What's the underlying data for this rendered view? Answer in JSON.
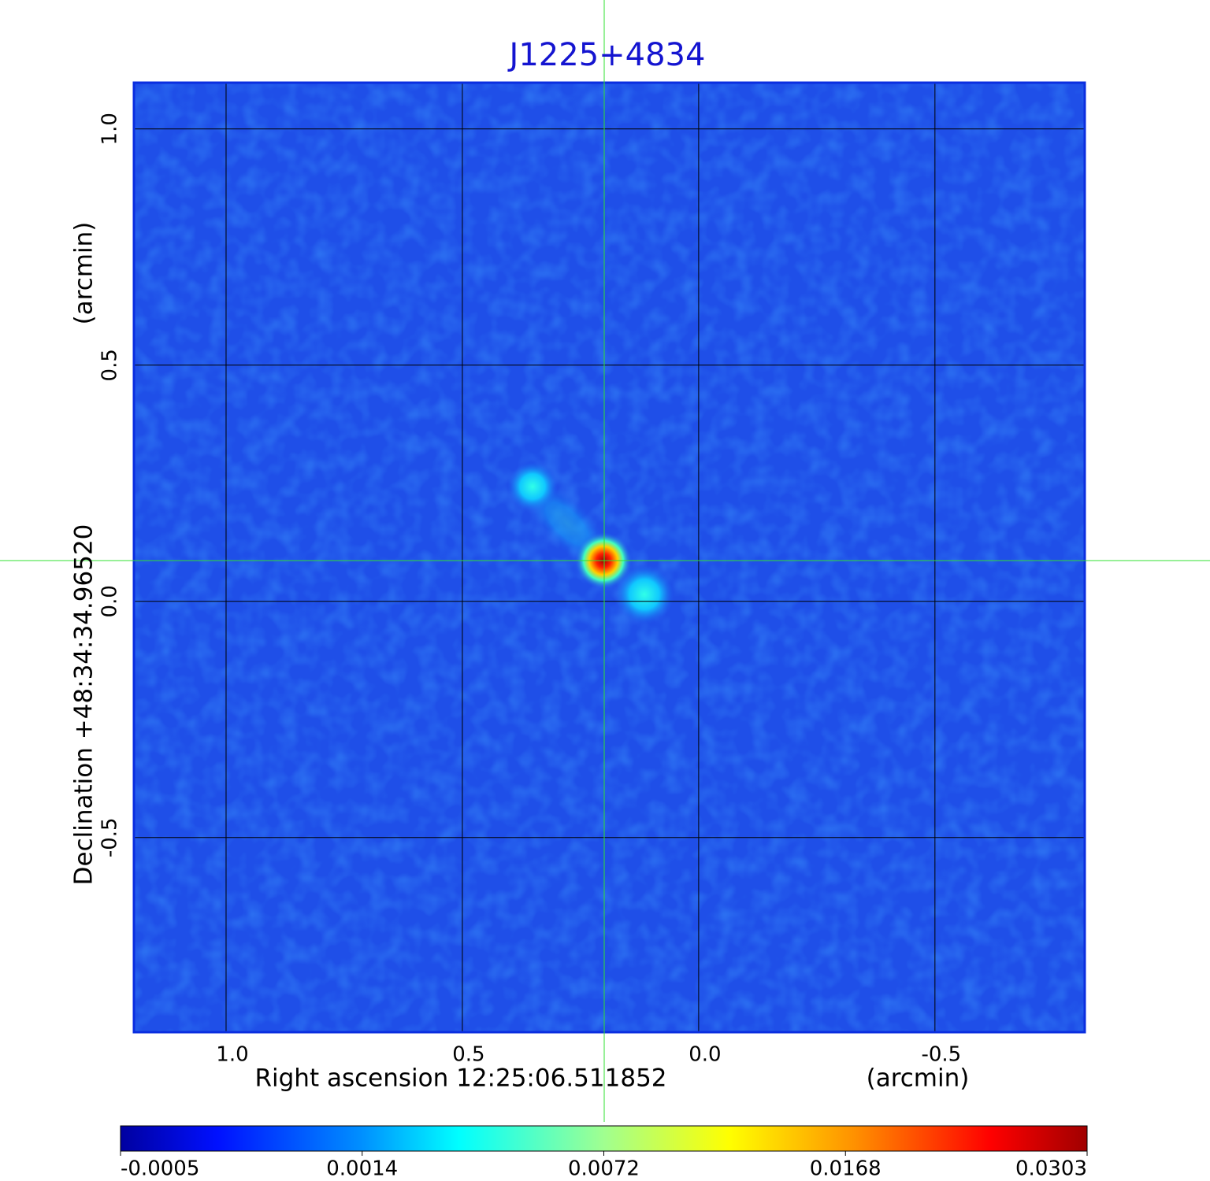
{
  "chart_data": {
    "type": "image",
    "title": "J1225+4834",
    "x_label": "Right ascension  12:25:06.511852",
    "x_unit": "(arcmin)",
    "y_label": "Declination  +48:34:34.96520",
    "y_unit": "(arcmin)",
    "xlim": [
      1.195,
      -0.817
    ],
    "ylim": [
      -0.912,
      1.098
    ],
    "xticks": [
      {
        "value": 1,
        "label": "1.0"
      },
      0.5,
      {
        "value": 0,
        "label": "0.0"
      },
      -0.5
    ],
    "yticks": [
      {
        "value": 1,
        "label": "1.0"
      },
      0.5,
      {
        "value": 0,
        "label": "0.0"
      },
      -0.5
    ],
    "grid": true,
    "colorbar": {
      "colormap": "jet",
      "ticks": [
        -0.0005,
        0.0014,
        0.0072,
        0.0168,
        0.0303
      ]
    }
  }
}
